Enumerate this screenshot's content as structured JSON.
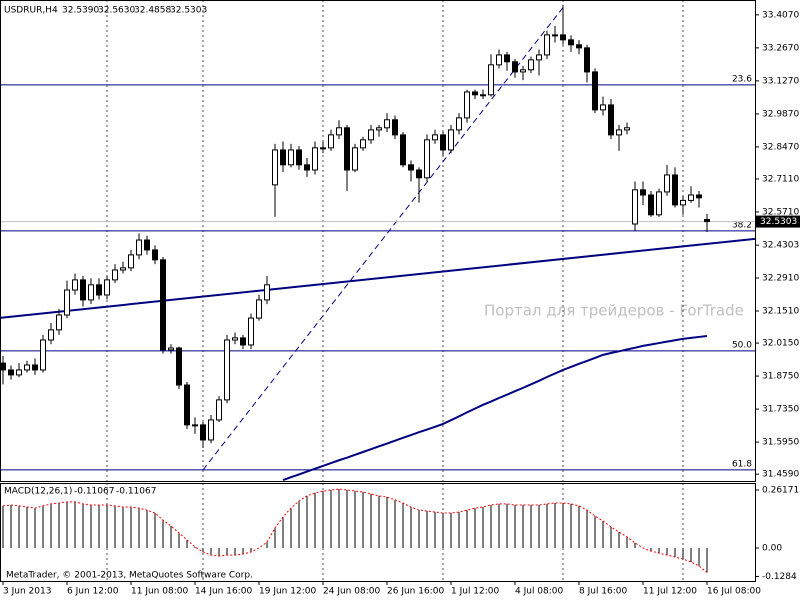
{
  "chart_data": {
    "type": "candlestick",
    "title": "USDRUR,H4",
    "last_bar_labels": [
      "32.5390",
      "32.5630",
      "32.4858",
      "32.5303"
    ],
    "categories": [
      "3 Jun 2013",
      null,
      null,
      null,
      null,
      null,
      null,
      null,
      "6 Jun 12:00",
      null,
      null,
      null,
      null,
      null,
      null,
      null,
      "11 Jun 08:00",
      null,
      null,
      null,
      null,
      null,
      null,
      null,
      "14 Jun 16:00",
      null,
      null,
      null,
      null,
      null,
      null,
      null,
      "19 Jun 12:00",
      null,
      null,
      null,
      null,
      null,
      null,
      null,
      "24 Jun 08:00",
      null,
      null,
      null,
      null,
      null,
      null,
      null,
      "26 Jun 16:00",
      null,
      null,
      null,
      null,
      null,
      null,
      null,
      "1 Jul 12:00",
      null,
      null,
      null,
      null,
      null,
      null,
      null,
      "4 Jul 08:00",
      null,
      null,
      null,
      null,
      null,
      null,
      null,
      "8 Jul 16:00",
      null,
      null,
      null,
      null,
      null,
      null,
      null,
      "11 Jul 12:00",
      null,
      null,
      null,
      null,
      null,
      null,
      null,
      "16 Jul 08:00"
    ],
    "candles": [
      [
        31.93,
        31.96,
        31.84,
        31.901
      ],
      [
        31.901,
        31.92,
        31.86,
        31.88
      ],
      [
        31.88,
        31.93,
        31.87,
        31.901
      ],
      [
        31.901,
        31.94,
        31.89,
        31.922
      ],
      [
        31.922,
        31.95,
        31.88,
        31.901
      ],
      [
        31.901,
        32.05,
        31.89,
        32.028
      ],
      [
        32.028,
        32.1,
        32.01,
        32.071
      ],
      [
        32.071,
        32.16,
        32.05,
        32.134
      ],
      [
        32.134,
        32.28,
        32.12,
        32.24
      ],
      [
        32.24,
        32.31,
        32.22,
        32.283
      ],
      [
        32.283,
        32.3,
        32.17,
        32.198
      ],
      [
        32.198,
        32.29,
        32.18,
        32.262
      ],
      [
        32.262,
        32.29,
        32.2,
        32.219
      ],
      [
        32.219,
        32.3,
        32.2,
        32.283
      ],
      [
        32.283,
        32.35,
        32.27,
        32.325
      ],
      [
        32.325,
        32.36,
        32.31,
        32.334
      ],
      [
        32.334,
        32.41,
        32.32,
        32.389
      ],
      [
        32.389,
        32.48,
        32.37,
        32.452
      ],
      [
        32.452,
        32.47,
        32.39,
        32.41
      ],
      [
        32.41,
        32.43,
        32.35,
        32.368
      ],
      [
        32.368,
        32.38,
        31.97,
        31.986
      ],
      [
        31.986,
        32.01,
        31.97,
        31.994
      ],
      [
        31.994,
        32.0,
        31.82,
        31.837
      ],
      [
        31.837,
        31.85,
        31.65,
        31.668
      ],
      [
        31.668,
        31.7,
        31.63,
        31.668
      ],
      [
        31.668,
        31.68,
        31.57,
        31.604
      ],
      [
        31.604,
        31.71,
        31.59,
        31.689
      ],
      [
        31.689,
        31.79,
        31.68,
        31.774
      ],
      [
        31.774,
        32.05,
        31.76,
        32.028
      ],
      [
        32.028,
        32.06,
        32.01,
        32.037
      ],
      [
        32.037,
        32.05,
        31.99,
        32.007
      ],
      [
        32.007,
        32.14,
        31.99,
        32.121
      ],
      [
        32.121,
        32.22,
        32.11,
        32.198
      ],
      [
        32.198,
        32.3,
        32.18,
        32.262
      ],
      [
        32.686,
        32.86,
        32.55,
        32.834
      ],
      [
        32.834,
        32.87,
        32.74,
        32.771
      ],
      [
        32.771,
        32.86,
        32.76,
        32.834
      ],
      [
        32.834,
        32.85,
        32.75,
        32.771
      ],
      [
        32.771,
        32.8,
        32.72,
        32.749
      ],
      [
        32.749,
        32.87,
        32.73,
        32.843
      ],
      [
        32.843,
        32.87,
        32.82,
        32.843
      ],
      [
        32.843,
        32.92,
        32.83,
        32.898
      ],
      [
        32.898,
        32.96,
        32.88,
        32.928
      ],
      [
        32.928,
        32.94,
        32.66,
        32.749
      ],
      [
        32.749,
        32.86,
        32.74,
        32.843
      ],
      [
        32.843,
        32.89,
        32.83,
        32.877
      ],
      [
        32.877,
        32.94,
        32.86,
        32.919
      ],
      [
        32.919,
        32.94,
        32.89,
        32.928
      ],
      [
        32.928,
        32.99,
        32.91,
        32.962
      ],
      [
        32.962,
        32.98,
        32.88,
        32.898
      ],
      [
        32.898,
        32.91,
        32.76,
        32.771
      ],
      [
        32.771,
        32.79,
        32.7,
        32.749
      ],
      [
        32.749,
        32.76,
        32.61,
        32.716
      ],
      [
        32.716,
        32.9,
        32.7,
        32.877
      ],
      [
        32.877,
        32.92,
        32.86,
        32.898
      ],
      [
        32.898,
        32.91,
        32.81,
        32.834
      ],
      [
        32.834,
        32.94,
        32.82,
        32.919
      ],
      [
        32.919,
        32.99,
        32.9,
        32.97
      ],
      [
        32.97,
        33.09,
        32.95,
        33.08
      ],
      [
        33.08,
        33.09,
        33.05,
        33.068
      ],
      [
        33.068,
        33.09,
        33.05,
        33.068
      ],
      [
        33.068,
        33.24,
        33.06,
        33.195
      ],
      [
        33.195,
        33.26,
        33.18,
        33.237
      ],
      [
        33.237,
        33.25,
        33.17,
        33.208
      ],
      [
        33.208,
        33.22,
        33.14,
        33.165
      ],
      [
        33.165,
        33.19,
        33.13,
        33.174
      ],
      [
        33.174,
        33.23,
        33.16,
        33.216
      ],
      [
        33.216,
        33.26,
        33.15,
        33.237
      ],
      [
        33.237,
        33.34,
        33.22,
        33.322
      ],
      [
        33.322,
        33.36,
        33.29,
        33.322
      ],
      [
        33.322,
        33.45,
        33.28,
        33.301
      ],
      [
        33.301,
        33.32,
        33.25,
        33.28
      ],
      [
        33.28,
        33.3,
        33.24,
        33.267
      ],
      [
        33.267,
        33.28,
        33.12,
        33.165
      ],
      [
        33.165,
        33.18,
        32.99,
        33.004
      ],
      [
        33.004,
        33.06,
        32.98,
        33.025
      ],
      [
        33.025,
        33.05,
        32.88,
        32.898
      ],
      [
        32.898,
        32.94,
        32.83,
        32.919
      ],
      [
        32.919,
        32.95,
        32.9,
        32.928
      ],
      [
        32.52,
        32.7,
        32.49,
        32.665
      ],
      [
        32.665,
        32.7,
        32.6,
        32.643
      ],
      [
        32.643,
        32.66,
        32.55,
        32.559
      ],
      [
        32.559,
        32.67,
        32.55,
        32.656
      ],
      [
        32.656,
        32.77,
        32.64,
        32.728
      ],
      [
        32.728,
        32.76,
        32.59,
        32.601
      ],
      [
        32.601,
        32.64,
        32.56,
        32.62
      ],
      [
        32.62,
        32.68,
        32.61,
        32.643
      ],
      [
        32.643,
        32.66,
        32.59,
        32.631
      ],
      [
        32.539,
        32.563,
        32.4858,
        32.5303
      ]
    ],
    "ma": {
      "color": "#000080",
      "values": [
        null,
        null,
        null,
        null,
        null,
        null,
        null,
        null,
        null,
        null,
        null,
        null,
        null,
        null,
        null,
        null,
        null,
        null,
        null,
        null,
        null,
        null,
        null,
        null,
        null,
        null,
        null,
        null,
        null,
        null,
        null,
        null,
        null,
        null,
        null,
        31.434,
        31.446,
        31.458,
        31.47,
        31.482,
        31.494,
        31.506,
        31.518,
        31.529,
        31.541,
        31.553,
        31.565,
        31.577,
        31.589,
        31.601,
        31.613,
        31.625,
        31.637,
        31.648,
        31.66,
        31.672,
        31.688,
        31.704,
        31.721,
        31.737,
        31.753,
        31.767,
        31.782,
        31.796,
        31.811,
        31.825,
        31.84,
        31.855,
        31.871,
        31.886,
        31.901,
        31.914,
        31.927,
        31.939,
        31.952,
        31.965,
        31.973,
        31.98,
        31.988,
        31.995,
        32.003,
        32.009,
        32.015,
        32.021,
        32.027,
        32.033,
        32.037,
        32.041,
        32.045
      ]
    },
    "trendline": {
      "color": "#000080",
      "values": [
        32.122,
        32.457
      ]
    },
    "dashed_trend": {
      "color": "#000080",
      "x": [
        25,
        70.25
      ],
      "values": [
        31.477,
        33.449
      ]
    },
    "fib_levels": [
      {
        "label": "23.6",
        "price": 33.11
      },
      {
        "label": "38.2",
        "price": 32.491
      },
      {
        "label": "50.0",
        "price": 31.982
      },
      {
        "label": "61.8",
        "price": 31.477
      }
    ],
    "ylim": [
      31.43,
      33.47
    ],
    "yticks": [
      {
        "value": 33.407,
        "label": "33.4070"
      },
      {
        "value": 33.267,
        "label": "33.2670"
      },
      {
        "value": 33.127,
        "label": "33.1270"
      },
      {
        "value": 32.987,
        "label": "32.9870"
      },
      {
        "value": 32.847,
        "label": "32.8470"
      },
      {
        "value": 32.711,
        "label": "32.7110"
      },
      {
        "value": 32.571,
        "label": "32.5710"
      },
      {
        "value": 32.4303,
        "label": "32.4303"
      },
      {
        "value": 32.291,
        "label": "32.2910"
      },
      {
        "value": 32.151,
        "label": "32.1510"
      },
      {
        "value": 32.015,
        "label": "32.0150"
      },
      {
        "value": 31.875,
        "label": "31.8750"
      },
      {
        "value": 31.735,
        "label": "31.7350"
      },
      {
        "value": 31.595,
        "label": "31.5950"
      },
      {
        "value": 31.459,
        "label": "31.4590"
      }
    ],
    "macd": {
      "label": "MACD(12,26,1)",
      "last_labels": [
        "-0.11067",
        "-0.11067"
      ],
      "color": "#000000",
      "signal_color": "#ff0000",
      "values": [
        0.19,
        0.194,
        0.19,
        0.185,
        0.18,
        0.19,
        0.199,
        0.203,
        0.208,
        0.208,
        0.199,
        0.194,
        0.194,
        0.194,
        0.19,
        0.185,
        0.185,
        0.18,
        0.171,
        0.158,
        0.126,
        0.099,
        0.068,
        0.036,
        0.005,
        -0.018,
        -0.032,
        -0.036,
        -0.032,
        -0.032,
        -0.027,
        -0.018,
        0.0,
        0.027,
        0.09,
        0.14,
        0.18,
        0.212,
        0.235,
        0.248,
        0.257,
        0.262,
        0.266,
        0.262,
        0.257,
        0.253,
        0.244,
        0.235,
        0.23,
        0.217,
        0.203,
        0.185,
        0.171,
        0.167,
        0.162,
        0.158,
        0.158,
        0.162,
        0.171,
        0.18,
        0.185,
        0.194,
        0.199,
        0.199,
        0.194,
        0.194,
        0.194,
        0.194,
        0.199,
        0.203,
        0.203,
        0.199,
        0.19,
        0.171,
        0.144,
        0.122,
        0.095,
        0.072,
        0.05,
        0.023,
        0.0,
        -0.014,
        -0.023,
        -0.032,
        -0.041,
        -0.05,
        -0.063,
        -0.081,
        -0.11067
      ],
      "ylim": [
        -0.149,
        0.2933
      ],
      "yticks": [
        0.26171,
        {
          "value": 0,
          "label": "0.00"
        },
        -0.1284
      ]
    },
    "watermark": "Портал для трейдеров - ForTrade",
    "footer": "MetaTrader, © 2001-2013, MetaQuotes Software Corp."
  }
}
